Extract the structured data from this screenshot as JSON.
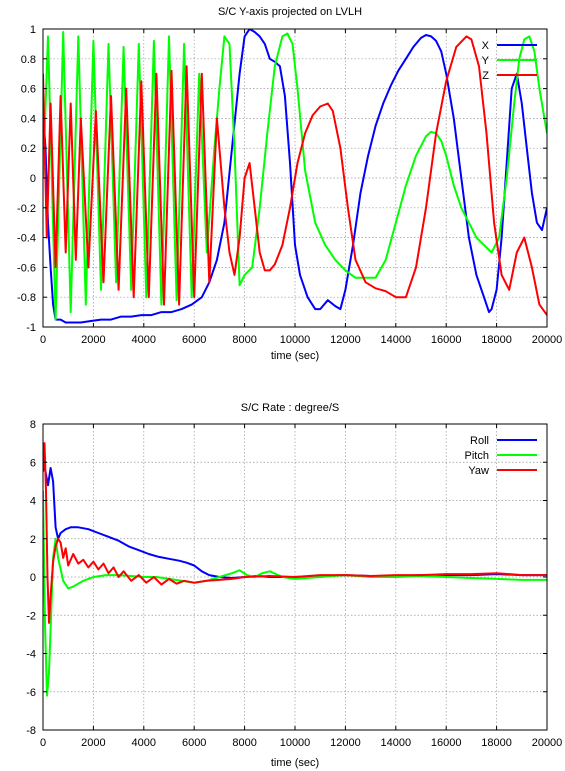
{
  "chart_data": [
    {
      "type": "line",
      "title": "S/C Y-axis projected on LVLH",
      "xlabel": "time (sec)",
      "ylabel": "",
      "xlim": [
        0,
        20000
      ],
      "ylim": [
        -1,
        1
      ],
      "xticks": [
        "0",
        "2000",
        "4000",
        "6000",
        "8000",
        "10000",
        "12000",
        "14000",
        "16000",
        "18000",
        "20000"
      ],
      "yticks": [
        "1",
        "0.8",
        "0.6",
        "0.4",
        "0.2",
        "0",
        "-0.2",
        "-0.4",
        "-0.6",
        "-0.8",
        "-1"
      ],
      "grid": true,
      "legend_position": "top-right",
      "series": [
        {
          "name": "X",
          "color": "#0000ff",
          "x": [
            0,
            100,
            200,
            300,
            400,
            500,
            700,
            900,
            1200,
            1500,
            1900,
            2300,
            2700,
            3100,
            3500,
            3900,
            4300,
            4700,
            5100,
            5500,
            5900,
            6300,
            6600,
            6900,
            7200,
            7500,
            7800,
            8000,
            8200,
            8400,
            8600,
            8800,
            9000,
            9200,
            9400,
            9600,
            9800,
            10000,
            10200,
            10500,
            10800,
            11000,
            11300,
            11600,
            11800,
            12000,
            12300,
            12600,
            12900,
            13200,
            13500,
            13800,
            14100,
            14400,
            14700,
            15000,
            15200,
            15400,
            15600,
            15800,
            16000,
            16300,
            16600,
            16900,
            17200,
            17500,
            17700,
            17800,
            18000,
            18200,
            18400,
            18600,
            18800,
            19000,
            19200,
            19400,
            19600,
            19800,
            20000
          ],
          "y": [
            0.45,
            0.2,
            -0.3,
            -0.6,
            -0.85,
            -0.95,
            -0.95,
            -0.97,
            -0.97,
            -0.97,
            -0.96,
            -0.95,
            -0.95,
            -0.93,
            -0.93,
            -0.92,
            -0.92,
            -0.9,
            -0.9,
            -0.88,
            -0.85,
            -0.8,
            -0.7,
            -0.55,
            -0.3,
            0.2,
            0.7,
            0.95,
            1.0,
            0.98,
            0.95,
            0.9,
            0.8,
            0.78,
            0.75,
            0.55,
            0.1,
            -0.45,
            -0.65,
            -0.8,
            -0.88,
            -0.88,
            -0.82,
            -0.86,
            -0.88,
            -0.75,
            -0.45,
            -0.1,
            0.15,
            0.35,
            0.5,
            0.62,
            0.72,
            0.8,
            0.88,
            0.94,
            0.96,
            0.95,
            0.92,
            0.85,
            0.7,
            0.4,
            0.0,
            -0.4,
            -0.65,
            -0.8,
            -0.9,
            -0.88,
            -0.75,
            -0.4,
            0.1,
            0.6,
            0.7,
            0.5,
            0.2,
            -0.1,
            -0.3,
            -0.35,
            -0.2
          ]
        },
        {
          "name": "Y",
          "color": "#00ff00",
          "x": [
            0,
            200,
            500,
            800,
            1100,
            1400,
            1700,
            2000,
            2300,
            2600,
            2900,
            3200,
            3500,
            3800,
            4100,
            4400,
            4700,
            5000,
            5300,
            5600,
            5900,
            6200,
            6500,
            6800,
            7000,
            7200,
            7400,
            7600,
            7800,
            8000,
            8300,
            8600,
            8900,
            9200,
            9500,
            9700,
            9900,
            10100,
            10400,
            10800,
            11200,
            11600,
            12000,
            12400,
            12800,
            13200,
            13600,
            14000,
            14400,
            14800,
            15200,
            15400,
            15600,
            15800,
            16000,
            16300,
            16600,
            16900,
            17200,
            17500,
            17800,
            18100,
            18400,
            18700,
            18900,
            19100,
            19300,
            19500,
            19700,
            20000
          ],
          "y": [
            0.0,
            0.95,
            -0.95,
            0.98,
            -0.9,
            0.95,
            -0.85,
            0.92,
            -0.75,
            0.9,
            -0.7,
            0.88,
            -0.75,
            0.9,
            -0.8,
            0.92,
            -0.85,
            0.95,
            -0.82,
            0.9,
            -0.8,
            0.7,
            -0.5,
            0.2,
            0.6,
            0.95,
            0.9,
            0.2,
            -0.72,
            -0.65,
            -0.6,
            -0.2,
            0.3,
            0.75,
            0.95,
            0.97,
            0.9,
            0.6,
            0.05,
            -0.3,
            -0.45,
            -0.55,
            -0.62,
            -0.67,
            -0.67,
            -0.67,
            -0.55,
            -0.3,
            -0.05,
            0.15,
            0.28,
            0.31,
            0.3,
            0.25,
            0.15,
            -0.05,
            -0.2,
            -0.3,
            -0.4,
            -0.45,
            -0.5,
            -0.4,
            0.0,
            0.5,
            0.8,
            0.93,
            0.95,
            0.85,
            0.6,
            0.3
          ]
        },
        {
          "name": "Z",
          "color": "#ff0000",
          "x": [
            0,
            150,
            300,
            500,
            700,
            900,
            1100,
            1300,
            1500,
            1800,
            2100,
            2400,
            2700,
            3000,
            3300,
            3600,
            3900,
            4200,
            4500,
            4800,
            5100,
            5400,
            5700,
            6000,
            6300,
            6600,
            6900,
            7200,
            7400,
            7600,
            7800,
            8000,
            8200,
            8400,
            8600,
            8800,
            9000,
            9200,
            9500,
            9800,
            10100,
            10400,
            10700,
            11000,
            11300,
            11500,
            11800,
            12100,
            12400,
            12800,
            13200,
            13600,
            14000,
            14400,
            14800,
            15200,
            15600,
            16000,
            16400,
            16800,
            17000,
            17300,
            17600,
            17900,
            18200,
            18500,
            18800,
            19100,
            19400,
            19700,
            20000
          ],
          "y": [
            0.7,
            -0.4,
            0.5,
            -0.6,
            0.55,
            -0.5,
            0.5,
            -0.55,
            0.4,
            -0.6,
            0.45,
            -0.7,
            0.55,
            -0.75,
            0.6,
            -0.8,
            0.65,
            -0.8,
            0.7,
            -0.85,
            0.72,
            -0.85,
            0.75,
            -0.8,
            0.7,
            -0.7,
            0.4,
            -0.2,
            -0.5,
            -0.65,
            -0.4,
            0.0,
            0.1,
            -0.2,
            -0.5,
            -0.62,
            -0.62,
            -0.58,
            -0.45,
            -0.2,
            0.1,
            0.3,
            0.42,
            0.48,
            0.5,
            0.45,
            0.2,
            -0.2,
            -0.55,
            -0.7,
            -0.74,
            -0.76,
            -0.8,
            -0.8,
            -0.6,
            -0.2,
            0.3,
            0.65,
            0.88,
            0.95,
            0.93,
            0.75,
            0.3,
            -0.3,
            -0.65,
            -0.75,
            -0.5,
            -0.4,
            -0.6,
            -0.85,
            -0.92
          ]
        }
      ]
    },
    {
      "type": "line",
      "title": "S/C Rate : degree/S",
      "xlabel": "time (sec)",
      "ylabel": "",
      "xlim": [
        0,
        20000
      ],
      "ylim": [
        -8,
        8
      ],
      "xticks": [
        "0",
        "2000",
        "4000",
        "6000",
        "8000",
        "10000",
        "12000",
        "14000",
        "16000",
        "18000",
        "20000"
      ],
      "yticks": [
        "8",
        "6",
        "4",
        "2",
        "0",
        "-2",
        "-4",
        "-6",
        "-8"
      ],
      "grid": true,
      "legend_position": "top-right",
      "series": [
        {
          "name": "Roll",
          "color": "#0000ff",
          "x": [
            0,
            100,
            200,
            300,
            400,
            500,
            600,
            700,
            900,
            1100,
            1400,
            1800,
            2200,
            2600,
            3000,
            3400,
            3800,
            4200,
            4600,
            5000,
            5400,
            5700,
            6000,
            6300,
            6600,
            7000,
            7500,
            8000,
            8500,
            9000,
            10000,
            11000,
            12000,
            13000,
            14000,
            15000,
            16000,
            17000,
            18000,
            19000,
            20000
          ],
          "y": [
            6.0,
            5.5,
            4.8,
            5.7,
            5.0,
            2.6,
            2.0,
            2.3,
            2.5,
            2.6,
            2.6,
            2.5,
            2.3,
            2.1,
            1.9,
            1.6,
            1.4,
            1.2,
            1.05,
            0.95,
            0.85,
            0.75,
            0.6,
            0.3,
            0.1,
            0.0,
            -0.05,
            0.0,
            0.05,
            0.0,
            0.0,
            0.05,
            0.1,
            0.05,
            0.05,
            0.1,
            0.1,
            0.1,
            0.15,
            0.1,
            0.1
          ]
        },
        {
          "name": "Pitch",
          "color": "#00ff00",
          "x": [
            0,
            80,
            160,
            240,
            320,
            400,
            500,
            600,
            800,
            1000,
            1200,
            1600,
            2000,
            2500,
            3000,
            3500,
            4000,
            4500,
            5000,
            5500,
            6000,
            6500,
            7000,
            7500,
            7800,
            8100,
            8400,
            8700,
            9000,
            9500,
            10000,
            11000,
            12000,
            13000,
            14000,
            15000,
            16000,
            17000,
            18000,
            19000,
            20000
          ],
          "y": [
            4.5,
            -2.5,
            -6.2,
            -5.0,
            -2.0,
            1.0,
            2.0,
            1.0,
            -0.2,
            -0.6,
            -0.5,
            -0.2,
            0.0,
            0.1,
            0.1,
            0.05,
            0.0,
            0.0,
            -0.1,
            -0.2,
            -0.3,
            -0.2,
            0.0,
            0.2,
            0.35,
            0.1,
            0.0,
            0.2,
            0.3,
            0.0,
            -0.1,
            0.0,
            0.1,
            0.0,
            0.0,
            0.05,
            0.0,
            -0.05,
            -0.1,
            -0.15,
            -0.15
          ]
        },
        {
          "name": "Yaw",
          "color": "#ff0000",
          "x": [
            0,
            60,
            120,
            180,
            240,
            300,
            400,
            500,
            600,
            700,
            800,
            900,
            1000,
            1200,
            1400,
            1600,
            1800,
            2000,
            2200,
            2400,
            2600,
            2800,
            3000,
            3200,
            3500,
            3800,
            4100,
            4400,
            4700,
            5000,
            5300,
            5600,
            6000,
            6500,
            7000,
            7500,
            8000,
            9000,
            10000,
            11000,
            12000,
            13000,
            14000,
            15000,
            16000,
            17000,
            18000,
            19000,
            20000
          ],
          "y": [
            5.5,
            7.0,
            4.5,
            0.0,
            -2.4,
            -1.0,
            0.8,
            1.6,
            2.0,
            1.8,
            1.0,
            1.5,
            0.6,
            1.2,
            0.7,
            0.9,
            0.5,
            0.8,
            0.4,
            0.7,
            0.2,
            0.5,
            0.0,
            0.3,
            -0.2,
            0.1,
            -0.3,
            0.0,
            -0.4,
            -0.1,
            -0.35,
            -0.2,
            -0.3,
            -0.2,
            -0.15,
            -0.1,
            0.0,
            0.05,
            0.0,
            0.1,
            0.1,
            0.05,
            0.1,
            0.1,
            0.15,
            0.15,
            0.2,
            0.1,
            0.1
          ]
        }
      ]
    }
  ]
}
